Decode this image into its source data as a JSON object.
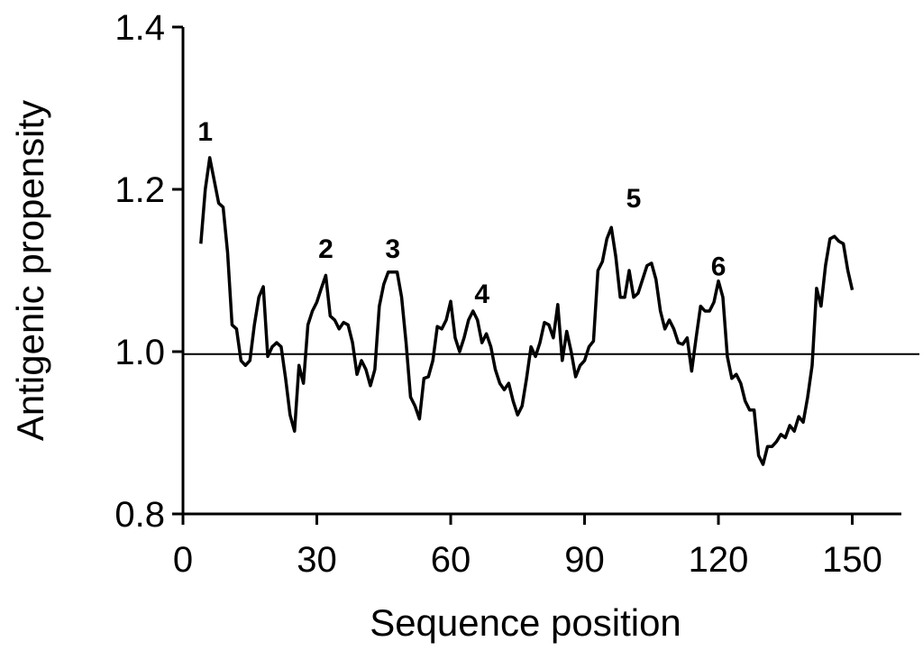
{
  "chart_data": {
    "type": "line",
    "xlabel": "Sequence position",
    "ylabel": "Antigenic propensity",
    "xlim": [
      0,
      161
    ],
    "ylim": [
      0.8,
      1.4
    ],
    "xticks": [
      0,
      30,
      60,
      90,
      120,
      150
    ],
    "yticks": [
      {
        "value": 0.8,
        "label": "0.8"
      },
      {
        "value": 1.0,
        "label": "1.0"
      },
      {
        "value": 1.2,
        "label": "1.2"
      },
      {
        "value": 1.4,
        "label": "1.4"
      }
    ],
    "reference_line": 0.997,
    "series": [
      {
        "name": "Antigenic propensity",
        "color": "#000000",
        "x": [
          4,
          5,
          6,
          7,
          8,
          9,
          10,
          11,
          12,
          13,
          14,
          15,
          16,
          17,
          18,
          19,
          20,
          21,
          22,
          23,
          24,
          25,
          26,
          27,
          28,
          29,
          30,
          31,
          32,
          33,
          34,
          35,
          36,
          37,
          38,
          39,
          40,
          41,
          42,
          43,
          44,
          45,
          46,
          47,
          48,
          49,
          50,
          51,
          52,
          53,
          54,
          55,
          56,
          57,
          58,
          59,
          60,
          61,
          62,
          63,
          64,
          65,
          66,
          67,
          68,
          69,
          70,
          71,
          72,
          73,
          74,
          75,
          76,
          77,
          78,
          79,
          80,
          81,
          82,
          83,
          84,
          85,
          86,
          87,
          88,
          89,
          90,
          91,
          92,
          93,
          94,
          95,
          96,
          97,
          98,
          99,
          100,
          101,
          102,
          103,
          104,
          105,
          106,
          107,
          108,
          109,
          110,
          111,
          112,
          113,
          114,
          115,
          116,
          117,
          118,
          119,
          120,
          121,
          122,
          123,
          124,
          125,
          126,
          127,
          128,
          129,
          130,
          131,
          132,
          133,
          134,
          135,
          136,
          137,
          138,
          139,
          140,
          141,
          142,
          143,
          144,
          145,
          146,
          147,
          148,
          149,
          150
        ],
        "values": [
          1.133,
          1.2,
          1.239,
          1.211,
          1.183,
          1.178,
          1.122,
          1.033,
          1.028,
          0.989,
          0.983,
          0.989,
          1.033,
          1.067,
          1.08,
          0.994,
          1.006,
          1.011,
          1.006,
          0.967,
          0.922,
          0.902,
          0.983,
          0.961,
          1.033,
          1.05,
          1.061,
          1.078,
          1.094,
          1.044,
          1.039,
          1.028,
          1.036,
          1.033,
          1.011,
          0.972,
          0.989,
          0.978,
          0.958,
          0.978,
          1.056,
          1.083,
          1.098,
          1.098,
          1.098,
          1.067,
          1.011,
          0.944,
          0.933,
          0.917,
          0.967,
          0.969,
          0.989,
          1.031,
          1.028,
          1.039,
          1.062,
          1.017,
          1.0,
          1.017,
          1.039,
          1.05,
          1.039,
          1.011,
          1.022,
          1.006,
          0.978,
          0.961,
          0.953,
          0.961,
          0.939,
          0.922,
          0.933,
          0.967,
          1.006,
          0.994,
          1.011,
          1.036,
          1.033,
          1.017,
          1.058,
          0.989,
          1.025,
          1.0,
          0.969,
          0.983,
          0.989,
          1.006,
          1.013,
          1.1,
          1.111,
          1.139,
          1.153,
          1.117,
          1.067,
          1.067,
          1.1,
          1.067,
          1.072,
          1.089,
          1.106,
          1.109,
          1.089,
          1.05,
          1.028,
          1.039,
          1.028,
          1.011,
          1.009,
          1.017,
          0.976,
          1.017,
          1.056,
          1.05,
          1.05,
          1.061,
          1.087,
          1.067,
          0.994,
          0.967,
          0.972,
          0.961,
          0.939,
          0.928,
          0.928,
          0.872,
          0.861,
          0.883,
          0.883,
          0.889,
          0.898,
          0.894,
          0.909,
          0.902,
          0.92,
          0.913,
          0.944,
          0.983,
          1.078,
          1.056,
          1.106,
          1.139,
          1.142,
          1.136,
          1.133,
          1.1,
          1.076
        ]
      }
    ],
    "annotations": [
      {
        "text": "1",
        "x": 5,
        "y": 1.272
      },
      {
        "text": "2",
        "x": 32,
        "y": 1.128
      },
      {
        "text": "3",
        "x": 47,
        "y": 1.128
      },
      {
        "text": "4",
        "x": 67,
        "y": 1.072
      },
      {
        "text": "5",
        "x": 101,
        "y": 1.19
      },
      {
        "text": "6",
        "x": 120,
        "y": 1.106
      }
    ]
  }
}
